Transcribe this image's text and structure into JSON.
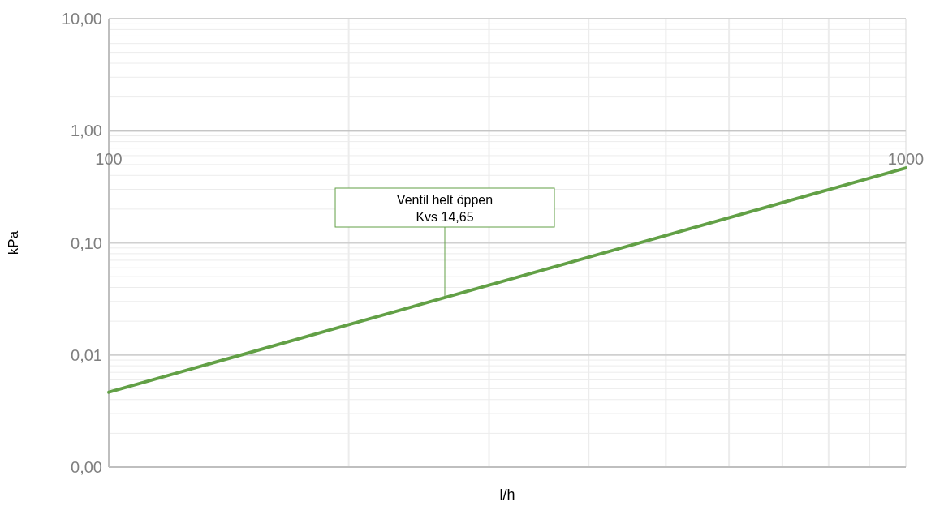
{
  "chart_data": {
    "type": "line",
    "xlabel": "l/h",
    "ylabel": "kPa",
    "log": "xy",
    "grid": true,
    "x": [
      100,
      200,
      300,
      500,
      700,
      1000
    ],
    "series": [
      {
        "color": "#62a046",
        "values": [
          0.00466,
          0.01864,
          0.04194,
          0.1165,
          0.2283,
          0.466
        ]
      }
    ],
    "xlim": [
      100,
      1000
    ],
    "xticks": [
      100,
      1000
    ],
    "ylim": [
      0.001,
      10
    ],
    "yticks": [
      {
        "value": 0.001,
        "label": "0,00"
      },
      {
        "value": 0.01,
        "label": "0,01"
      },
      {
        "value": 0.1,
        "label": "0,10"
      },
      {
        "value": 1,
        "label": "1,00"
      },
      {
        "value": 10,
        "label": "10,00"
      }
    ],
    "annotations": [
      {
        "text": "Ventil helt öppen\nKvs 14,65",
        "x": 264,
        "y": 0.0325
      }
    ]
  }
}
